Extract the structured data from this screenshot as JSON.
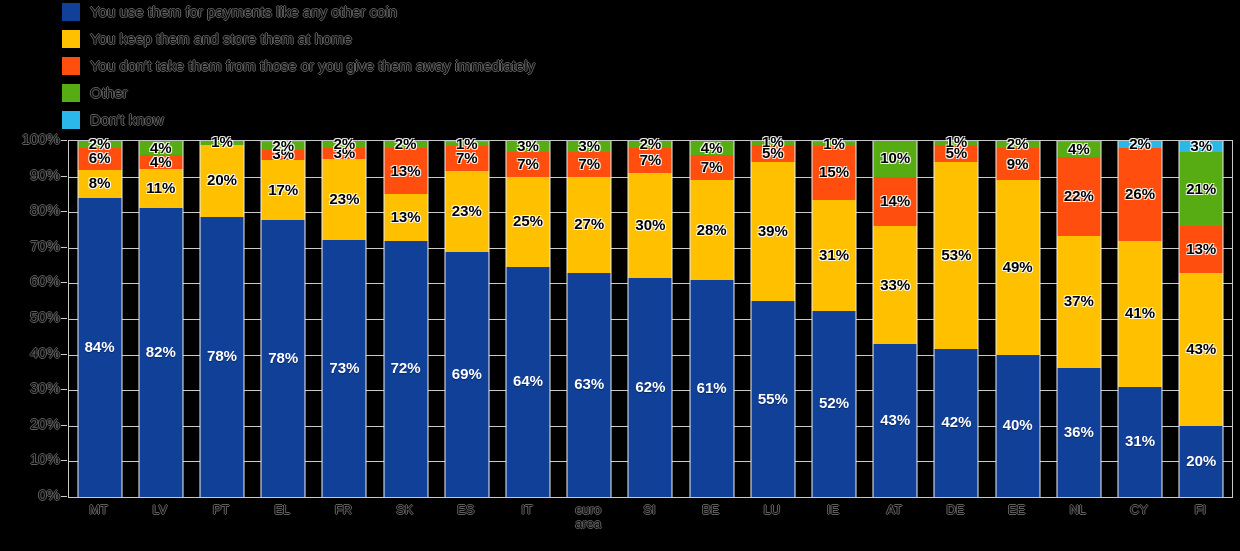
{
  "background_color": "#000000",
  "axis_line_color": "#c9c9c9",
  "chart_data": {
    "type": "bar",
    "variant": "stacked-100",
    "title": "",
    "xlabel": "",
    "ylabel": "",
    "ylim": [
      0,
      100
    ],
    "grid": true,
    "legend_position": "top-left",
    "y_ticks": [
      "100%",
      "90%",
      "80%",
      "70%",
      "60%",
      "50%",
      "40%",
      "30%",
      "20%",
      "10%",
      "0%"
    ],
    "categories": [
      "MT",
      "LV",
      "PT",
      "EL",
      "FR",
      "SK",
      "ES",
      "IT",
      "euro area",
      "SI",
      "BE",
      "LU",
      "IE",
      "AT",
      "DE",
      "EE",
      "NL",
      "CY",
      "FI"
    ],
    "series": [
      {
        "name": "You use them for payments like any other coin",
        "color": "#114098",
        "text": "light",
        "values": [
          84,
          82,
          78,
          78,
          73,
          72,
          69,
          64,
          63,
          62,
          61,
          55,
          52,
          43,
          42,
          40,
          36,
          31,
          20
        ]
      },
      {
        "name": "You keep them and store them at home",
        "color": "#FFC000",
        "text": "dark",
        "values": [
          8,
          11,
          20,
          17,
          23,
          13,
          23,
          25,
          27,
          30,
          28,
          39,
          31,
          33,
          53,
          49,
          37,
          41,
          43
        ]
      },
      {
        "name": "You don't take them from those or you give them away immediately",
        "color": "#FF4E0D",
        "text": "dark",
        "values": [
          6,
          4,
          0,
          3,
          3,
          13,
          7,
          7,
          7,
          7,
          7,
          5,
          15,
          14,
          5,
          9,
          22,
          26,
          13
        ]
      },
      {
        "name": "Other",
        "color": "#56AC12",
        "text": "dark",
        "values": [
          2,
          4,
          1,
          2,
          2,
          2,
          1,
          3,
          3,
          2,
          4,
          1,
          1,
          10,
          1,
          2,
          4,
          0,
          21
        ]
      },
      {
        "name": "Don't know",
        "color": "#2BB7EA",
        "text": "dark",
        "values": [
          0,
          0,
          0,
          0.4,
          0,
          0,
          0.4,
          0,
          0,
          0,
          0,
          0,
          0.4,
          0,
          0,
          0,
          0.4,
          2,
          3
        ]
      }
    ]
  }
}
